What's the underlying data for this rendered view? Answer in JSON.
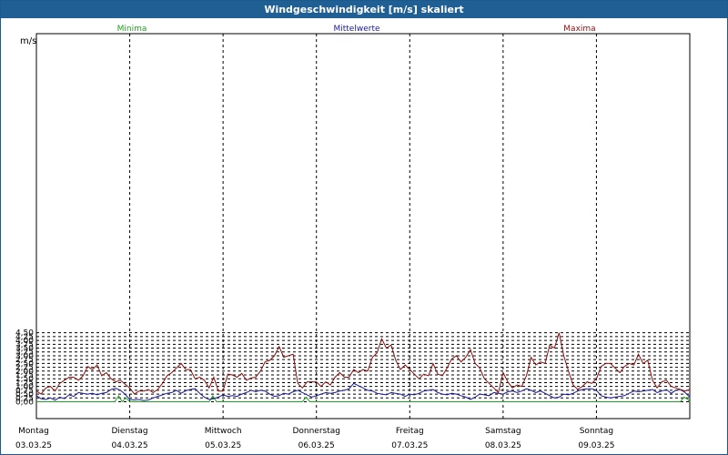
{
  "window": {
    "title": "Windgeschwindigkeit [m/s] skaliert"
  },
  "chart_data": {
    "type": "line",
    "title": "Windgeschwindigkeit [m/s] skaliert",
    "ylabel": "m/s",
    "xlabel": "",
    "ylim": [
      0,
      4.75
    ],
    "xlim": [
      0,
      7
    ],
    "grid": true,
    "legend_position": "top",
    "yticks": [
      "0,00",
      "0,25",
      "0,50",
      "0,75",
      "1,00",
      "1,25",
      "1,50",
      "1,75",
      "2,00",
      "2,25",
      "2,50",
      "2,75",
      "3,00",
      "3,25",
      "3,50",
      "3,75",
      "4,00",
      "4,25",
      "4,50"
    ],
    "xticks": [
      {
        "day": "Montag",
        "date": "03.03.25"
      },
      {
        "day": "Dienstag",
        "date": "04.03.25"
      },
      {
        "day": "Mittwoch",
        "date": "05.03.25"
      },
      {
        "day": "Donnerstag",
        "date": "06.03.25"
      },
      {
        "day": "Freitag",
        "date": "07.03.25"
      },
      {
        "day": "Samstag",
        "date": "08.03.25"
      },
      {
        "day": "Sonntag",
        "date": "09.03.25"
      }
    ],
    "series": [
      {
        "name": "Minima",
        "color": "#1fa31f",
        "x": [
          0,
          0.84,
          0.88,
          0.92,
          0.96,
          1.0,
          1.85,
          1.89,
          1.93,
          2.85,
          2.89,
          2.93,
          6.9,
          6.94,
          6.98,
          7.0
        ],
        "values": [
          0,
          0,
          0.38,
          0,
          0.25,
          0,
          0,
          0.38,
          0,
          0,
          0.3,
          0,
          0,
          0.3,
          0.15,
          0
        ]
      },
      {
        "name": "Mittelwerte",
        "color": "#1a1aa0",
        "x": [
          0,
          0.05,
          0.1,
          0.15,
          0.2,
          0.25,
          0.3,
          0.35,
          0.4,
          0.45,
          0.5,
          0.55,
          0.6,
          0.65,
          0.7,
          0.75,
          0.8,
          0.85,
          0.9,
          0.95,
          1.0,
          1.05,
          1.1,
          1.15,
          1.2,
          1.25,
          1.3,
          1.35,
          1.4,
          1.45,
          1.5,
          1.55,
          1.6,
          1.65,
          1.7,
          1.75,
          1.8,
          1.85,
          1.9,
          1.95,
          2.0,
          2.05,
          2.1,
          2.15,
          2.2,
          2.25,
          2.3,
          2.35,
          2.4,
          2.45,
          2.5,
          2.55,
          2.6,
          2.65,
          2.7,
          2.75,
          2.8,
          2.85,
          2.9,
          2.95,
          3.0,
          3.05,
          3.1,
          3.15,
          3.2,
          3.25,
          3.3,
          3.35,
          3.4,
          3.45,
          3.5,
          3.55,
          3.6,
          3.65,
          3.7,
          3.75,
          3.8,
          3.85,
          3.9,
          3.95,
          4.0,
          4.05,
          4.1,
          4.15,
          4.2,
          4.25,
          4.3,
          4.35,
          4.4,
          4.45,
          4.5,
          4.55,
          4.6,
          4.65,
          4.7,
          4.75,
          4.8,
          4.85,
          4.9,
          4.95,
          5.0,
          5.05,
          5.1,
          5.15,
          5.2,
          5.25,
          5.3,
          5.35,
          5.4,
          5.45,
          5.5,
          5.55,
          5.6,
          5.65,
          5.7,
          5.75,
          5.8,
          5.85,
          5.9,
          5.95,
          6.0,
          6.05,
          6.1,
          6.15,
          6.2,
          6.25,
          6.3,
          6.35,
          6.4,
          6.45,
          6.5,
          6.55,
          6.6,
          6.65,
          6.7,
          6.75,
          6.8,
          6.85,
          6.9,
          6.95,
          7.0
        ],
        "values": [
          0.4,
          0.2,
          0.15,
          0.25,
          0.1,
          0.3,
          0.2,
          0.45,
          0.35,
          0.6,
          0.55,
          0.5,
          0.55,
          0.45,
          0.55,
          0.6,
          0.8,
          0.88,
          0.75,
          0.5,
          0.15,
          0.12,
          0.15,
          0.08,
          0.12,
          0.25,
          0.35,
          0.45,
          0.55,
          0.6,
          0.75,
          0.55,
          0.72,
          0.8,
          0.85,
          0.55,
          0.3,
          0.15,
          0.2,
          0.3,
          0.45,
          0.35,
          0.4,
          0.35,
          0.5,
          0.6,
          0.75,
          0.65,
          0.75,
          0.7,
          0.5,
          0.35,
          0.4,
          0.55,
          0.5,
          0.65,
          0.75,
          0.6,
          0.45,
          0.3,
          0.4,
          0.5,
          0.6,
          0.55,
          0.6,
          0.7,
          0.75,
          0.85,
          1.2,
          1.05,
          0.9,
          0.75,
          0.7,
          0.55,
          0.5,
          0.45,
          0.6,
          0.55,
          0.5,
          0.35,
          0.5,
          0.45,
          0.55,
          0.7,
          0.75,
          0.8,
          0.6,
          0.5,
          0.45,
          0.55,
          0.5,
          0.4,
          0.3,
          0.15,
          0.3,
          0.5,
          0.45,
          0.4,
          0.6,
          0.55,
          0.5,
          0.65,
          0.7,
          0.6,
          0.7,
          0.85,
          0.75,
          0.6,
          0.7,
          0.55,
          0.4,
          0.25,
          0.3,
          0.5,
          0.45,
          0.55,
          0.7,
          0.8,
          0.85,
          0.85,
          0.75,
          0.4,
          0.3,
          0.25,
          0.3,
          0.35,
          0.4,
          0.55,
          0.7,
          0.65,
          0.7,
          0.75,
          0.8,
          0.6,
          0.7,
          0.8,
          0.55,
          0.75,
          0.8,
          0.6,
          0.3
        ]
      },
      {
        "name": "Maxima",
        "color": "#8b1010",
        "x": [
          0,
          0.05,
          0.1,
          0.15,
          0.2,
          0.25,
          0.3,
          0.35,
          0.4,
          0.45,
          0.5,
          0.55,
          0.6,
          0.65,
          0.7,
          0.75,
          0.8,
          0.85,
          0.9,
          0.95,
          1.0,
          1.05,
          1.1,
          1.15,
          1.2,
          1.25,
          1.3,
          1.35,
          1.4,
          1.45,
          1.5,
          1.55,
          1.6,
          1.65,
          1.7,
          1.75,
          1.8,
          1.85,
          1.9,
          1.95,
          2.0,
          2.05,
          2.1,
          2.15,
          2.2,
          2.25,
          2.3,
          2.35,
          2.4,
          2.45,
          2.5,
          2.55,
          2.6,
          2.65,
          2.7,
          2.75,
          2.8,
          2.85,
          2.9,
          2.95,
          3.0,
          3.05,
          3.1,
          3.15,
          3.2,
          3.25,
          3.3,
          3.35,
          3.4,
          3.45,
          3.5,
          3.55,
          3.6,
          3.65,
          3.7,
          3.75,
          3.8,
          3.85,
          3.9,
          3.95,
          4.0,
          4.05,
          4.1,
          4.15,
          4.2,
          4.25,
          4.3,
          4.35,
          4.4,
          4.45,
          4.5,
          4.55,
          4.6,
          4.65,
          4.7,
          4.75,
          4.8,
          4.85,
          4.9,
          4.95,
          5.0,
          5.05,
          5.1,
          5.15,
          5.2,
          5.25,
          5.3,
          5.35,
          5.4,
          5.45,
          5.5,
          5.55,
          5.6,
          5.65,
          5.7,
          5.75,
          5.8,
          5.85,
          5.9,
          5.95,
          6.0,
          6.05,
          6.1,
          6.15,
          6.2,
          6.25,
          6.3,
          6.35,
          6.4,
          6.45,
          6.5,
          6.55,
          6.6,
          6.65,
          6.7,
          6.75,
          6.8,
          6.85,
          6.9,
          6.95,
          7.0
        ],
        "values": [
          0.7,
          0.5,
          0.9,
          1.0,
          0.7,
          1.2,
          1.4,
          1.6,
          1.6,
          1.4,
          1.7,
          2.3,
          2.1,
          2.4,
          1.7,
          1.9,
          1.5,
          1.3,
          1.4,
          1.15,
          0.9,
          0.5,
          0.7,
          0.7,
          0.8,
          0.6,
          0.8,
          1.2,
          1.7,
          1.9,
          2.2,
          2.5,
          2.1,
          2.1,
          1.5,
          1.6,
          1.4,
          0.9,
          1.6,
          0.7,
          0.7,
          1.8,
          1.75,
          1.6,
          1.85,
          1.4,
          1.55,
          1.6,
          2.0,
          2.6,
          2.7,
          3.0,
          3.6,
          2.9,
          3.0,
          3.1,
          1.2,
          0.9,
          1.3,
          1.3,
          1.3,
          1.0,
          1.3,
          1.1,
          1.6,
          1.9,
          1.6,
          1.6,
          2.1,
          1.9,
          2.1,
          2.0,
          2.9,
          3.2,
          4.1,
          3.5,
          3.7,
          2.7,
          2.1,
          2.4,
          2.1,
          1.8,
          1.5,
          1.8,
          1.7,
          2.5,
          1.8,
          1.7,
          2.2,
          2.8,
          3.0,
          2.6,
          2.9,
          3.4,
          2.5,
          2.2,
          1.5,
          1.2,
          0.9,
          0.6,
          1.9,
          1.3,
          0.9,
          1.1,
          1.0,
          1.7,
          2.9,
          2.4,
          2.6,
          2.5,
          3.7,
          3.5,
          4.5,
          3.0,
          2.0,
          1.1,
          0.8,
          1.0,
          1.3,
          1.2,
          1.5,
          2.3,
          2.5,
          2.5,
          2.2,
          1.9,
          2.3,
          2.5,
          2.4,
          3.1,
          2.5,
          2.7,
          1.4,
          0.9,
          1.3,
          1.4,
          1.0,
          0.9,
          0.8,
          0.7,
          0.8
        ]
      }
    ]
  }
}
